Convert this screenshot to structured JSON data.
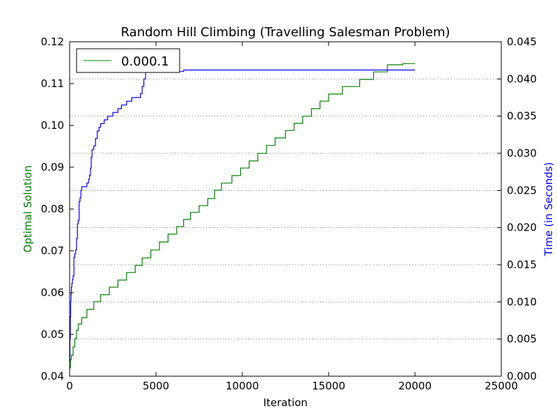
{
  "chart_data": {
    "type": "line",
    "title": "Random Hill Climbing (Travelling Salesman Problem)",
    "xlabel": "Iteration",
    "ylabel_left": "Optimal Solution",
    "ylabel_right": "Time (in Seconds)",
    "xlim": [
      0,
      25000
    ],
    "ylim_left": [
      0.04,
      0.12
    ],
    "ylim_right": [
      0.0,
      0.045
    ],
    "xticks": [
      "0",
      "5000",
      "10000",
      "15000",
      "20000",
      "25000"
    ],
    "yticks_left": [
      "0.04",
      "0.05",
      "0.06",
      "0.07",
      "0.08",
      "0.09",
      "0.10",
      "0.11",
      "0.12"
    ],
    "yticks_right": [
      "0.000",
      "0.005",
      "0.010",
      "0.015",
      "0.020",
      "0.025",
      "0.030",
      "0.035",
      "0.040",
      "0.045"
    ],
    "grid": "horizontal dotted on right-axis ticks",
    "legend_position": "top-left",
    "colors": {
      "optimal": "#008000",
      "time": "#0000ff",
      "grid": "#808080"
    },
    "series": [
      {
        "name": "0.000.1",
        "axis": "left",
        "color": "#008000",
        "drawstyle": "steps",
        "x": [
          0,
          50,
          100,
          200,
          300,
          400,
          500,
          700,
          1000,
          1400,
          1800,
          2300,
          2800,
          3300,
          3800,
          4200,
          4700,
          5200,
          5700,
          6200,
          6600,
          7000,
          7500,
          8000,
          8400,
          8800,
          9400,
          9900,
          10400,
          10900,
          11400,
          11900,
          12500,
          13000,
          13500,
          14000,
          14500,
          15000,
          15800,
          16800,
          17600,
          18400,
          19300,
          20000
        ],
        "values": [
          0.042,
          0.044,
          0.045,
          0.047,
          0.049,
          0.051,
          0.0525,
          0.054,
          0.056,
          0.0578,
          0.0595,
          0.0613,
          0.063,
          0.0648,
          0.0665,
          0.0683,
          0.0702,
          0.0721,
          0.074,
          0.0758,
          0.0775,
          0.0792,
          0.0808,
          0.0825,
          0.0845,
          0.0862,
          0.088,
          0.0898,
          0.0915,
          0.0933,
          0.0952,
          0.097,
          0.0988,
          0.1005,
          0.1022,
          0.104,
          0.1058,
          0.1075,
          0.1093,
          0.111,
          0.1128,
          0.1145,
          0.1148,
          0.1148
        ]
      },
      {
        "name": "",
        "axis": "right",
        "color": "#0000ff",
        "drawstyle": "steps",
        "x": [
          0,
          20,
          40,
          60,
          80,
          100,
          130,
          160,
          200,
          250,
          300,
          350,
          400,
          450,
          500,
          550,
          600,
          650,
          700,
          800,
          1000,
          1100,
          1150,
          1200,
          1250,
          1300,
          1400,
          1500,
          1600,
          1700,
          1800,
          2000,
          2200,
          2500,
          2800,
          3000,
          3300,
          3600,
          4100,
          4200,
          4300,
          4400,
          6600,
          20000
        ],
        "values": [
          0.002,
          0.005,
          0.008,
          0.01,
          0.011,
          0.012,
          0.0125,
          0.013,
          0.0135,
          0.016,
          0.0165,
          0.017,
          0.0185,
          0.0205,
          0.021,
          0.0235,
          0.024,
          0.025,
          0.0255,
          0.0255,
          0.026,
          0.0265,
          0.027,
          0.028,
          0.0295,
          0.0305,
          0.031,
          0.032,
          0.033,
          0.0335,
          0.034,
          0.0345,
          0.035,
          0.0355,
          0.036,
          0.0365,
          0.037,
          0.0375,
          0.038,
          0.039,
          0.04,
          0.041,
          0.0412,
          0.0412
        ]
      }
    ]
  }
}
